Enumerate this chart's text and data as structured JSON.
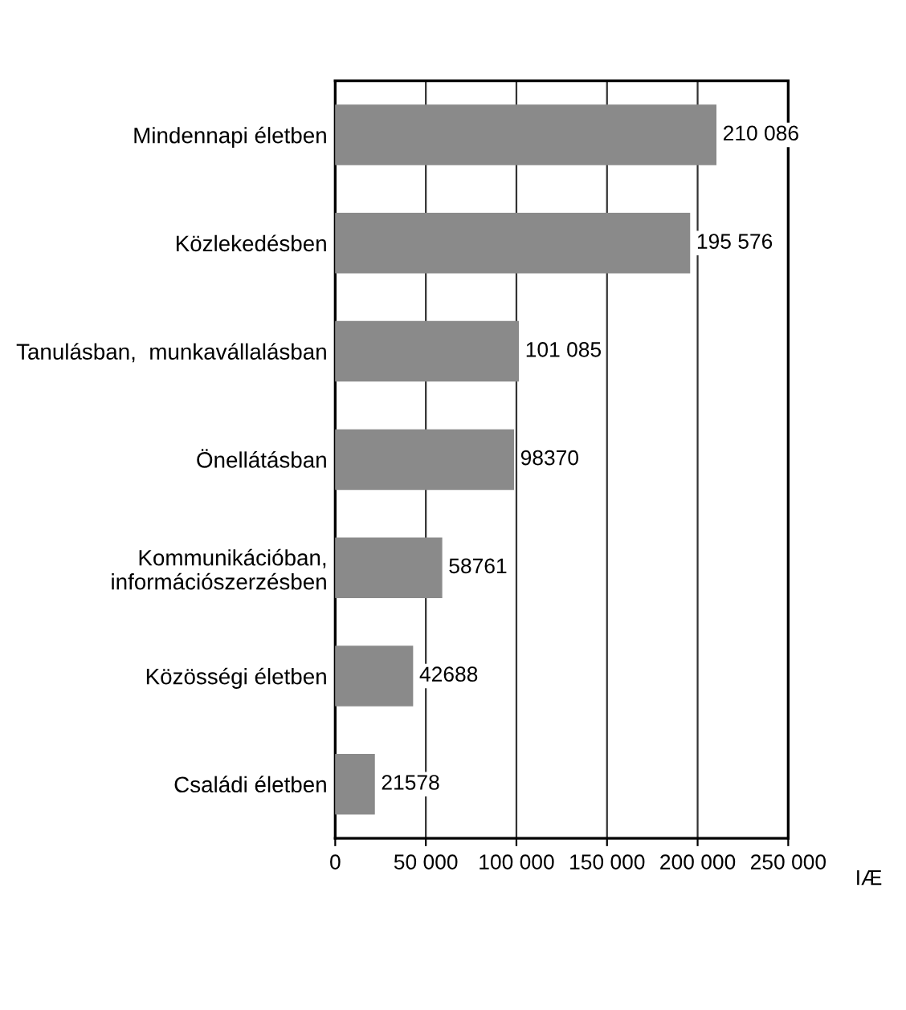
{
  "chart_data": {
    "type": "bar",
    "orientation": "horizontal",
    "categories": [
      "Mindennapi életben",
      "Közlekedésben",
      "Tanulásban,  munkavállalásban",
      "Önellátásban",
      "Kommunikációban,\ninformációszerzésben",
      "Közösségi életben",
      "Családi életben"
    ],
    "values": [
      210086,
      195576,
      101085,
      98370,
      58761,
      42688,
      21578
    ],
    "value_labels": [
      "210 086",
      "195 576",
      "101 085",
      "98370",
      "58761",
      "42688",
      "21578"
    ],
    "color": "#8a8a8a",
    "xlim": [
      0,
      250000
    ],
    "xticks": [
      0,
      {
        "value": 50000,
        "label": "50 000"
      },
      {
        "value": 100000,
        "label": "100 000"
      },
      {
        "value": 150000,
        "label": "150 000"
      },
      {
        "value": 200000,
        "label": "200 000"
      },
      {
        "value": 250000,
        "label": "250 000"
      }
    ],
    "xlabel": "IÆ",
    "grid": "x"
  }
}
